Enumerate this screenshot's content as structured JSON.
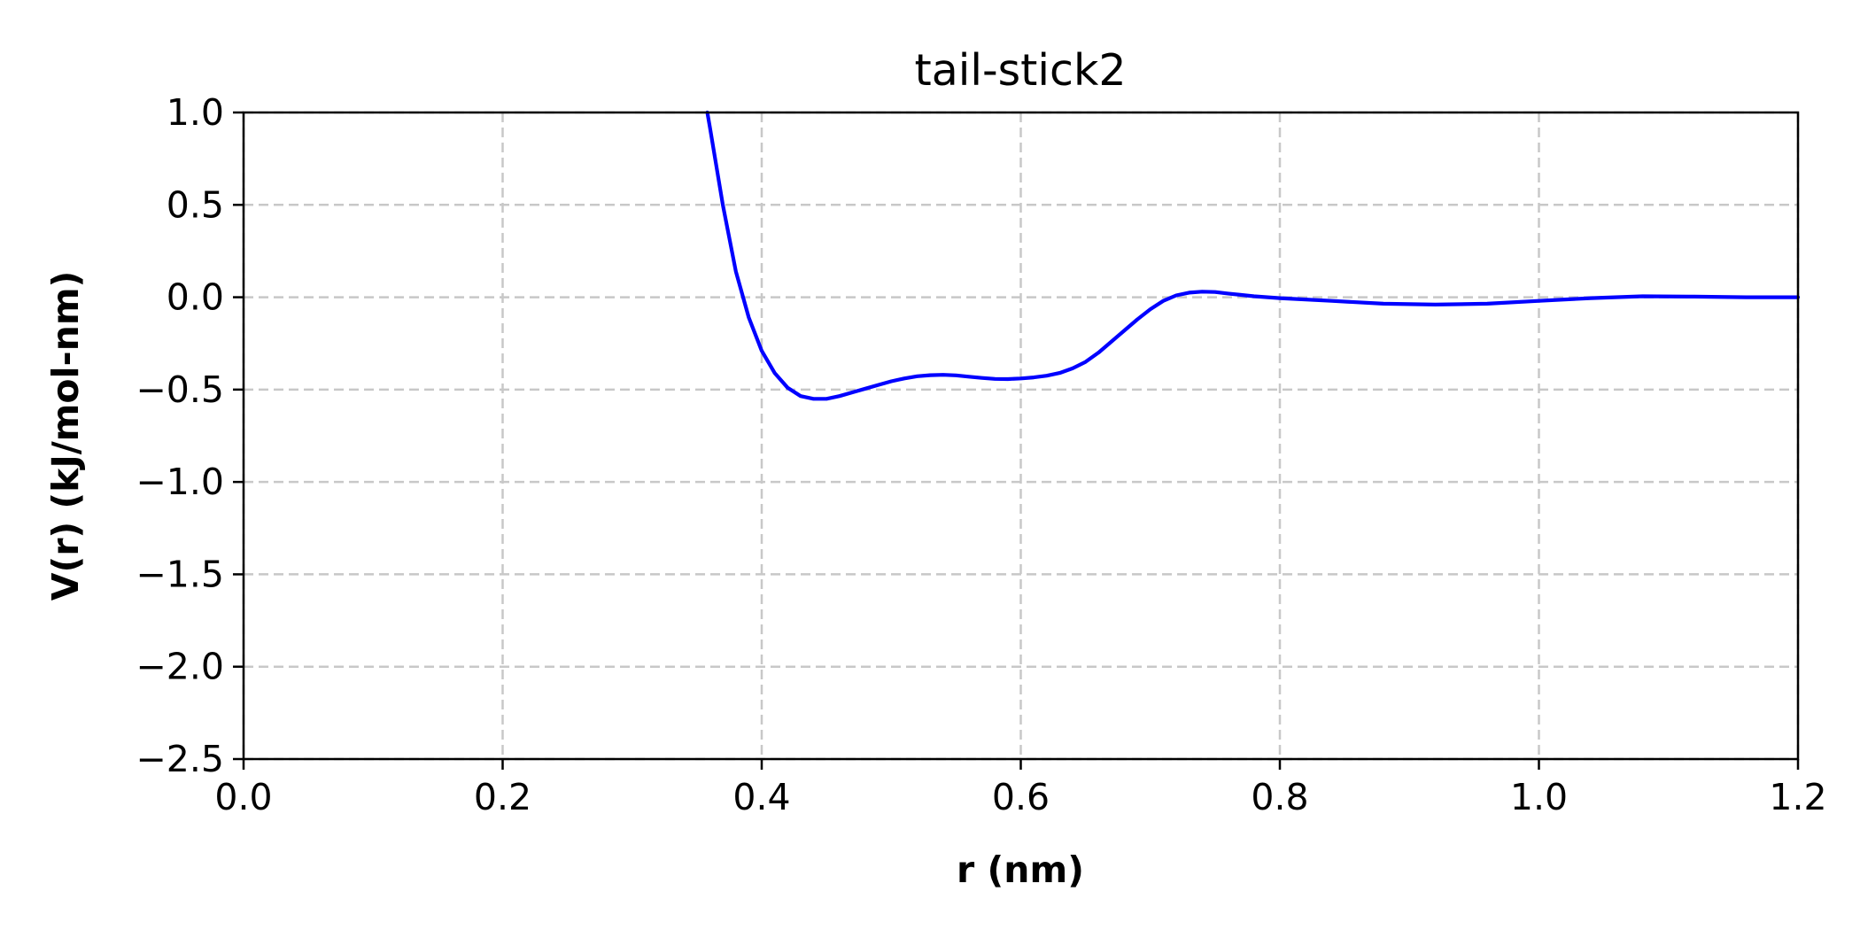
{
  "chart_data": {
    "type": "line",
    "title": "tail-stick2",
    "xlabel": "r (nm)",
    "ylabel": "V(r) (kJ/mol-nm)",
    "xlim": [
      0.0,
      1.2
    ],
    "ylim": [
      -2.5,
      1.0
    ],
    "grid": true,
    "xticks": [
      0.0,
      0.2,
      0.4,
      0.6,
      0.8,
      1.0,
      1.2
    ],
    "xtick_labels": [
      "0.0",
      "0.2",
      "0.4",
      "0.6",
      "0.8",
      "1.0",
      "1.2"
    ],
    "yticks": [
      1.0,
      0.5,
      0.0,
      -0.5,
      -1.0,
      -1.5,
      -2.0,
      -2.5
    ],
    "ytick_labels": [
      "1.0",
      "0.5",
      "0.0",
      "−0.5",
      "−1.0",
      "−1.5",
      "−2.0",
      "−2.5"
    ],
    "series": [
      {
        "color": "#0000ff",
        "x": [
          0.358,
          0.36,
          0.37,
          0.38,
          0.39,
          0.4,
          0.41,
          0.42,
          0.43,
          0.44,
          0.45,
          0.46,
          0.47,
          0.48,
          0.49,
          0.5,
          0.51,
          0.52,
          0.53,
          0.54,
          0.55,
          0.56,
          0.57,
          0.58,
          0.59,
          0.6,
          0.61,
          0.62,
          0.63,
          0.64,
          0.65,
          0.66,
          0.67,
          0.68,
          0.69,
          0.7,
          0.71,
          0.72,
          0.73,
          0.74,
          0.75,
          0.76,
          0.78,
          0.8,
          0.84,
          0.88,
          0.92,
          0.96,
          1.0,
          1.04,
          1.08,
          1.12,
          1.16,
          1.2
        ],
        "y": [
          1.0,
          0.92,
          0.5,
          0.14,
          -0.11,
          -0.29,
          -0.41,
          -0.49,
          -0.535,
          -0.55,
          -0.55,
          -0.535,
          -0.515,
          -0.495,
          -0.475,
          -0.455,
          -0.44,
          -0.428,
          -0.422,
          -0.42,
          -0.423,
          -0.43,
          -0.437,
          -0.442,
          -0.443,
          -0.44,
          -0.434,
          -0.425,
          -0.41,
          -0.385,
          -0.35,
          -0.3,
          -0.24,
          -0.18,
          -0.12,
          -0.065,
          -0.02,
          0.01,
          0.025,
          0.03,
          0.028,
          0.02,
          0.005,
          -0.005,
          -0.02,
          -0.035,
          -0.04,
          -0.035,
          -0.02,
          -0.005,
          0.005,
          0.003,
          0.0,
          0.0
        ]
      }
    ]
  }
}
